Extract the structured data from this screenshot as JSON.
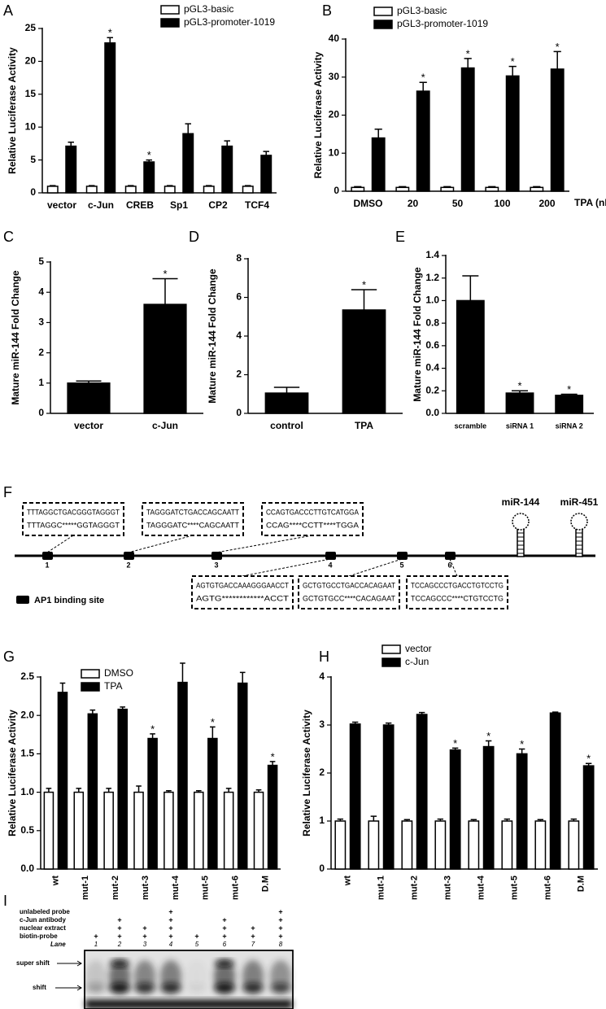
{
  "chart_data": [
    {
      "type": "bar",
      "panel": "A",
      "ylabel": "Relative Luciferase Activity",
      "categories": [
        "vector",
        "c-Jun",
        "CREB",
        "Sp1",
        "CP2",
        "TCF4"
      ],
      "series": [
        {
          "name": "pGL3-basic",
          "color": "#ffffff",
          "values": [
            1,
            1,
            1,
            1,
            1,
            1
          ],
          "errors": [
            0.1,
            0.1,
            0.1,
            0.1,
            0.1,
            0.1
          ]
        },
        {
          "name": "pGL3-promoter-1019",
          "color": "#000000",
          "values": [
            7.1,
            22.8,
            4.7,
            9.0,
            7.1,
            5.7
          ],
          "errors": [
            0.6,
            0.8,
            0.3,
            1.5,
            0.8,
            0.6
          ],
          "labels": [
            null,
            "*",
            "*",
            null,
            null,
            null
          ]
        }
      ],
      "ylim": [
        0,
        25
      ],
      "yticks": [
        0,
        5,
        10,
        15,
        20,
        25
      ]
    },
    {
      "type": "bar",
      "panel": "B",
      "ylabel": "Relative Luciferase Activity",
      "xlabel": "TPA (nM)",
      "categories": [
        "DMSO",
        "20",
        "50",
        "100",
        "200"
      ],
      "series": [
        {
          "name": "pGL3-basic",
          "color": "#ffffff",
          "values": [
            1,
            1,
            1,
            1,
            1
          ],
          "errors": [
            0.2,
            0.2,
            0.2,
            0.2,
            0.2
          ]
        },
        {
          "name": "pGL3-promoter-1019",
          "color": "#000000",
          "values": [
            14,
            26.3,
            32.4,
            30.3,
            32.1
          ],
          "errors": [
            2.3,
            2.3,
            2.5,
            2.5,
            4.6
          ],
          "labels": [
            null,
            "*",
            "*",
            "*",
            "*"
          ]
        }
      ],
      "ylim": [
        0,
        40
      ],
      "yticks": [
        0,
        10,
        20,
        30,
        40
      ]
    },
    {
      "type": "bar",
      "panel": "C",
      "ylabel": "Mature miR-144 Fold Change",
      "categories": [
        "vector",
        "c-Jun"
      ],
      "color": "#000000",
      "values": [
        1.0,
        3.6
      ],
      "errors": [
        0.07,
        0.85
      ],
      "labels": [
        null,
        "*"
      ],
      "ylim": [
        0,
        5
      ],
      "yticks": [
        0,
        1,
        2,
        3,
        4,
        5
      ]
    },
    {
      "type": "bar",
      "panel": "D",
      "ylabel": "Mature miR-144 Fold Change",
      "categories": [
        "control",
        "TPA"
      ],
      "color": "#000000",
      "values": [
        1.05,
        5.35
      ],
      "errors": [
        0.3,
        1.05
      ],
      "labels": [
        null,
        "*"
      ],
      "ylim": [
        0,
        8
      ],
      "yticks": [
        0,
        2,
        4,
        6,
        8
      ]
    },
    {
      "type": "bar",
      "panel": "E",
      "ylabel": "Mature miR-144 Fold Change",
      "categories": [
        "scramble",
        "siRNA 1",
        "siRNA 2"
      ],
      "color": "#000000",
      "values": [
        1.0,
        0.18,
        0.16
      ],
      "errors": [
        0.22,
        0.02,
        0.01
      ],
      "labels": [
        null,
        "*",
        "*"
      ],
      "ylim": [
        0,
        1.4
      ],
      "yticks": [
        {
          "value": 0,
          "label": "0.0"
        },
        0.2,
        0.4,
        0.6,
        0.8,
        {
          "value": 1,
          "label": "1.0"
        },
        1.2,
        1.4
      ]
    },
    {
      "type": "bar",
      "panel": "G",
      "ylabel": "Relative Luciferase Activity",
      "categories": [
        "wt",
        "mut-1",
        "mut-2",
        "mut-3",
        "mut-4",
        "mut-5",
        "mut-6",
        "D.M"
      ],
      "series": [
        {
          "name": "DMSO",
          "color": "#ffffff",
          "values": [
            1,
            1,
            1,
            1,
            1,
            1,
            1,
            1
          ],
          "errors": [
            0.05,
            0.05,
            0.05,
            0.08,
            0.02,
            0.02,
            0.05,
            0.03
          ]
        },
        {
          "name": "TPA",
          "color": "#000000",
          "values": [
            2.3,
            2.02,
            2.08,
            1.7,
            2.43,
            1.7,
            2.42,
            1.35
          ],
          "errors": [
            0.12,
            0.05,
            0.03,
            0.06,
            0.25,
            0.15,
            0.14,
            0.05
          ],
          "labels": [
            null,
            null,
            null,
            "*",
            null,
            "*",
            null,
            "*"
          ]
        }
      ],
      "ylim": [
        0,
        2.5
      ],
      "yticks": [
        {
          "value": 0,
          "label": "0.0"
        },
        0.5,
        {
          "value": 1,
          "label": "1.0"
        },
        1.5,
        {
          "value": 2,
          "label": "2.0"
        },
        2.5
      ]
    },
    {
      "type": "bar",
      "panel": "H",
      "ylabel": "Relative Luciferase Activity",
      "categories": [
        "wt",
        "mut-1",
        "mut-2",
        "mut-3",
        "mut-4",
        "mut-5",
        "mut-6",
        "D.M"
      ],
      "series": [
        {
          "name": "vector",
          "color": "#ffffff",
          "values": [
            1,
            1,
            1,
            1,
            1,
            1,
            1,
            1
          ],
          "errors": [
            0.04,
            0.1,
            0.03,
            0.04,
            0.03,
            0.04,
            0.03,
            0.04
          ]
        },
        {
          "name": "c-Jun",
          "color": "#000000",
          "values": [
            3.02,
            3.0,
            3.22,
            2.48,
            2.55,
            2.4,
            3.25,
            2.15
          ],
          "errors": [
            0.04,
            0.04,
            0.04,
            0.04,
            0.12,
            0.1,
            0.02,
            0.05
          ],
          "labels": [
            null,
            null,
            null,
            "*",
            "*",
            "*",
            null,
            "*"
          ]
        }
      ],
      "ylim": [
        0,
        4
      ],
      "yticks": [
        0,
        1,
        2,
        3,
        4
      ]
    }
  ],
  "diagram": {
    "panel": "F",
    "genes": [
      "miR-144",
      "miR-451"
    ],
    "legend": "AP1 binding site",
    "sites": [
      {
        "label": "1",
        "wt": "TTTAGGCTGACGGGTAGGGT",
        "mut": "TTTAGGC*****GGTAGGGT"
      },
      {
        "label": "2",
        "wt": "TAGGGATCTGACCAGCAATT",
        "mut": "TAGGGATC****CAGCAATT"
      },
      {
        "label": "3",
        "wt": "CCAGTGACCCTTGTCATGGA",
        "mut": "CCAG****CCTT****TGGA"
      },
      {
        "label": "4",
        "wt": "AGTGTGACCAAAGGGAACCT",
        "mut": "AGTG************ACCT"
      },
      {
        "label": "5",
        "wt": "GCTGTGCCTGACCACAGAAT",
        "mut": "GCTGTGCC****CACAGAAT"
      },
      {
        "label": "6",
        "wt": "TCCAGCCCTGACCTGTCCTG",
        "mut": "TCCAGCCC****CTGTCCTG"
      }
    ]
  },
  "gel": {
    "panel": "I",
    "lane_title": "Lane",
    "lanes": [
      "1",
      "2",
      "3",
      "4",
      "5",
      "6",
      "7",
      "8"
    ],
    "rows": [
      {
        "label": "unlabeled probe",
        "marks": [
          null,
          null,
          null,
          "+",
          null,
          null,
          null,
          "+"
        ]
      },
      {
        "label": "c-Jun antibody",
        "marks": [
          null,
          "+",
          null,
          "+",
          null,
          "+",
          null,
          "+"
        ]
      },
      {
        "label": "nuclear extract",
        "marks": [
          null,
          "+",
          "+",
          "+",
          null,
          "+",
          "+",
          "+"
        ]
      },
      {
        "label": "biotin-probe",
        "marks": [
          "+",
          "+",
          "+",
          "+",
          "+",
          "+",
          "+",
          "+"
        ]
      }
    ],
    "markers": [
      "super shift",
      "shift"
    ]
  }
}
